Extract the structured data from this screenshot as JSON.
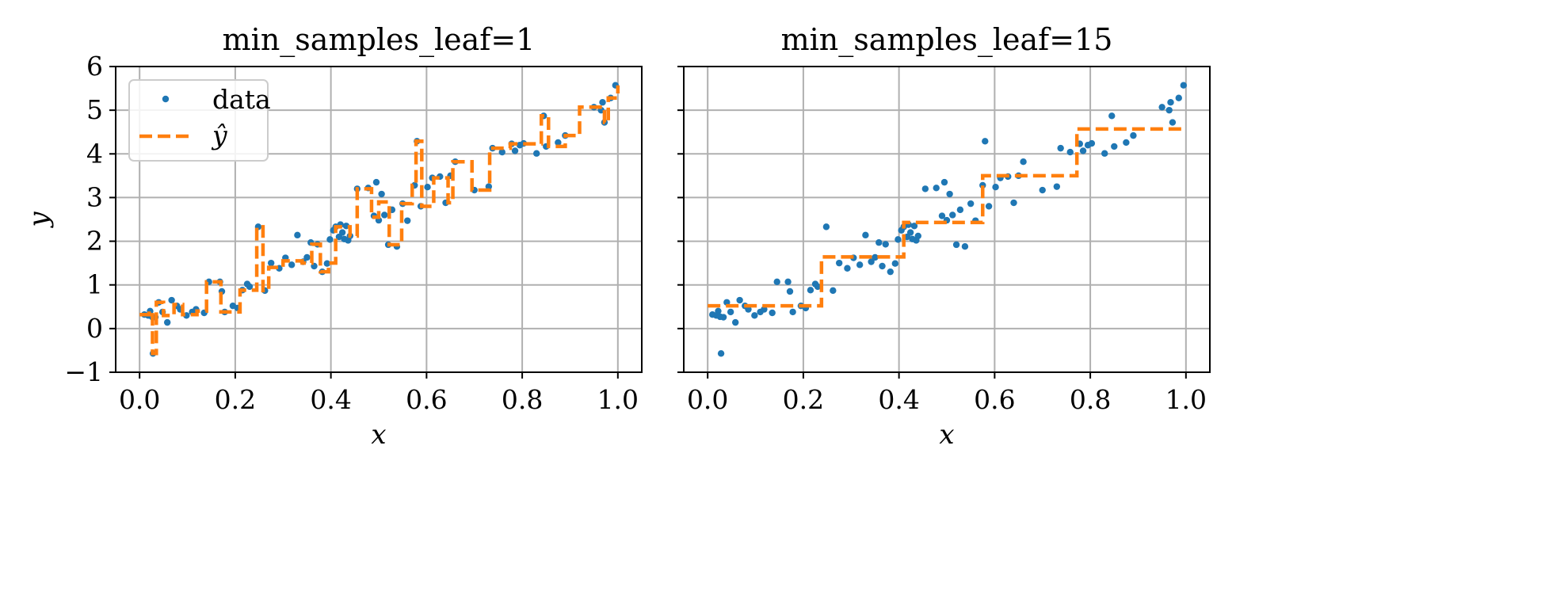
{
  "chart_data": [
    {
      "type": "scatter",
      "title": "min_samples_leaf=1",
      "xlabel": "x",
      "ylabel": "y",
      "xlim": [
        -0.05,
        1.05
      ],
      "ylim": [
        -1,
        6
      ],
      "xticks": [
        0.0,
        0.2,
        0.4,
        0.6,
        0.8,
        1.0
      ],
      "xtick_labels": [
        "0.0",
        "0.2",
        "0.4",
        "0.6",
        "0.8",
        "1.0"
      ],
      "yticks": [
        -1,
        0,
        1,
        2,
        3,
        4,
        5,
        6
      ],
      "ytick_labels": [
        "−1",
        "0",
        "1",
        "2",
        "3",
        "4",
        "5",
        "6"
      ],
      "grid": true,
      "legend": {
        "placement": "upper-left",
        "entries": [
          "data",
          "ŷ"
        ]
      },
      "colors": {
        "data": "#1f77b4",
        "fit": "#ff7f0e"
      },
      "series": [
        {
          "name": "data",
          "kind": "points",
          "ref": "shared_points"
        },
        {
          "name": "ŷ",
          "kind": "step",
          "ref": "fit_leaf1"
        }
      ]
    },
    {
      "type": "scatter",
      "title": "min_samples_leaf=15",
      "xlabel": "x",
      "ylabel": "",
      "xlim": [
        -0.05,
        1.05
      ],
      "ylim": [
        -1,
        6
      ],
      "xticks": [
        0.0,
        0.2,
        0.4,
        0.6,
        0.8,
        1.0
      ],
      "xtick_labels": [
        "0.0",
        "0.2",
        "0.4",
        "0.6",
        "0.8",
        "1.0"
      ],
      "yticks": [
        -1,
        0,
        1,
        2,
        3,
        4,
        5,
        6
      ],
      "ytick_labels": [],
      "grid": true,
      "colors": {
        "data": "#1f77b4",
        "fit": "#ff7f0e"
      },
      "series": [
        {
          "name": "data",
          "kind": "points",
          "ref": "shared_points"
        },
        {
          "name": "ŷ",
          "kind": "step",
          "ref": "fit_leaf15"
        }
      ]
    }
  ],
  "shared_points": [
    [
      0.01,
      0.32
    ],
    [
      0.018,
      0.3
    ],
    [
      0.022,
      0.4
    ],
    [
      0.026,
      0.27
    ],
    [
      0.028,
      -0.57
    ],
    [
      0.033,
      0.26
    ],
    [
      0.04,
      0.6
    ],
    [
      0.048,
      0.38
    ],
    [
      0.058,
      0.14
    ],
    [
      0.067,
      0.65
    ],
    [
      0.078,
      0.52
    ],
    [
      0.085,
      0.44
    ],
    [
      0.098,
      0.3
    ],
    [
      0.11,
      0.38
    ],
    [
      0.118,
      0.44
    ],
    [
      0.135,
      0.36
    ],
    [
      0.145,
      1.07
    ],
    [
      0.168,
      1.07
    ],
    [
      0.172,
      0.85
    ],
    [
      0.178,
      0.38
    ],
    [
      0.195,
      0.52
    ],
    [
      0.205,
      0.47
    ],
    [
      0.215,
      0.88
    ],
    [
      0.225,
      1.02
    ],
    [
      0.23,
      0.96
    ],
    [
      0.248,
      2.33
    ],
    [
      0.262,
      0.87
    ],
    [
      0.275,
      1.5
    ],
    [
      0.292,
      1.38
    ],
    [
      0.305,
      1.62
    ],
    [
      0.318,
      1.46
    ],
    [
      0.33,
      2.14
    ],
    [
      0.342,
      1.53
    ],
    [
      0.35,
      1.63
    ],
    [
      0.358,
      1.97
    ],
    [
      0.365,
      1.43
    ],
    [
      0.372,
      1.93
    ],
    [
      0.382,
      1.3
    ],
    [
      0.392,
      1.49
    ],
    [
      0.398,
      2.04
    ],
    [
      0.405,
      2.25
    ],
    [
      0.41,
      2.33
    ],
    [
      0.417,
      2.1
    ],
    [
      0.42,
      2.38
    ],
    [
      0.424,
      2.2
    ],
    [
      0.428,
      2.05
    ],
    [
      0.432,
      2.35
    ],
    [
      0.436,
      2.02
    ],
    [
      0.44,
      2.12
    ],
    [
      0.455,
      3.2
    ],
    [
      0.478,
      3.22
    ],
    [
      0.49,
      2.58
    ],
    [
      0.495,
      3.35
    ],
    [
      0.5,
      2.48
    ],
    [
      0.506,
      3.08
    ],
    [
      0.512,
      2.6
    ],
    [
      0.52,
      1.92
    ],
    [
      0.528,
      2.72
    ],
    [
      0.538,
      1.88
    ],
    [
      0.55,
      2.86
    ],
    [
      0.56,
      2.47
    ],
    [
      0.575,
      3.28
    ],
    [
      0.58,
      4.29
    ],
    [
      0.588,
      2.8
    ],
    [
      0.602,
      3.24
    ],
    [
      0.612,
      3.45
    ],
    [
      0.628,
      3.48
    ],
    [
      0.64,
      2.88
    ],
    [
      0.65,
      3.5
    ],
    [
      0.66,
      3.82
    ],
    [
      0.7,
      3.17
    ],
    [
      0.73,
      3.25
    ],
    [
      0.738,
      4.13
    ],
    [
      0.758,
      4.04
    ],
    [
      0.778,
      4.23
    ],
    [
      0.785,
      4.07
    ],
    [
      0.795,
      4.2
    ],
    [
      0.803,
      4.24
    ],
    [
      0.83,
      4.01
    ],
    [
      0.845,
      4.87
    ],
    [
      0.85,
      4.17
    ],
    [
      0.875,
      4.26
    ],
    [
      0.89,
      4.42
    ],
    [
      0.95,
      5.07
    ],
    [
      0.965,
      5.0
    ],
    [
      0.972,
      4.72
    ],
    [
      0.968,
      5.18
    ],
    [
      0.985,
      5.28
    ],
    [
      0.995,
      5.57
    ]
  ],
  "fit_leaf1": [
    [
      0.0,
      0.32
    ],
    [
      0.02,
      0.4
    ],
    [
      0.027,
      -0.57
    ],
    [
      0.035,
      0.6
    ],
    [
      0.05,
      0.3
    ],
    [
      0.072,
      0.55
    ],
    [
      0.09,
      0.32
    ],
    [
      0.12,
      0.4
    ],
    [
      0.14,
      1.07
    ],
    [
      0.17,
      0.38
    ],
    [
      0.21,
      0.88
    ],
    [
      0.245,
      2.33
    ],
    [
      0.258,
      0.87
    ],
    [
      0.27,
      1.4
    ],
    [
      0.3,
      1.55
    ],
    [
      0.34,
      1.5
    ],
    [
      0.36,
      1.93
    ],
    [
      0.378,
      1.3
    ],
    [
      0.395,
      1.5
    ],
    [
      0.41,
      2.33
    ],
    [
      0.44,
      2.12
    ],
    [
      0.455,
      3.2
    ],
    [
      0.485,
      2.55
    ],
    [
      0.5,
      2.9
    ],
    [
      0.522,
      1.92
    ],
    [
      0.548,
      2.86
    ],
    [
      0.57,
      3.28
    ],
    [
      0.578,
      4.29
    ],
    [
      0.59,
      2.8
    ],
    [
      0.615,
      3.45
    ],
    [
      0.645,
      2.88
    ],
    [
      0.655,
      3.82
    ],
    [
      0.695,
      3.17
    ],
    [
      0.732,
      4.13
    ],
    [
      0.775,
      4.23
    ],
    [
      0.84,
      4.87
    ],
    [
      0.855,
      4.17
    ],
    [
      0.89,
      4.42
    ],
    [
      0.92,
      5.07
    ],
    [
      0.972,
      4.72
    ],
    [
      0.98,
      5.28
    ],
    [
      1.0,
      5.57
    ]
  ],
  "fit_leaf15": [
    [
      0.0,
      0.52
    ],
    [
      0.238,
      1.64
    ],
    [
      0.41,
      2.43
    ],
    [
      0.575,
      3.5
    ],
    [
      0.772,
      4.57
    ],
    [
      1.0,
      4.57
    ]
  ]
}
